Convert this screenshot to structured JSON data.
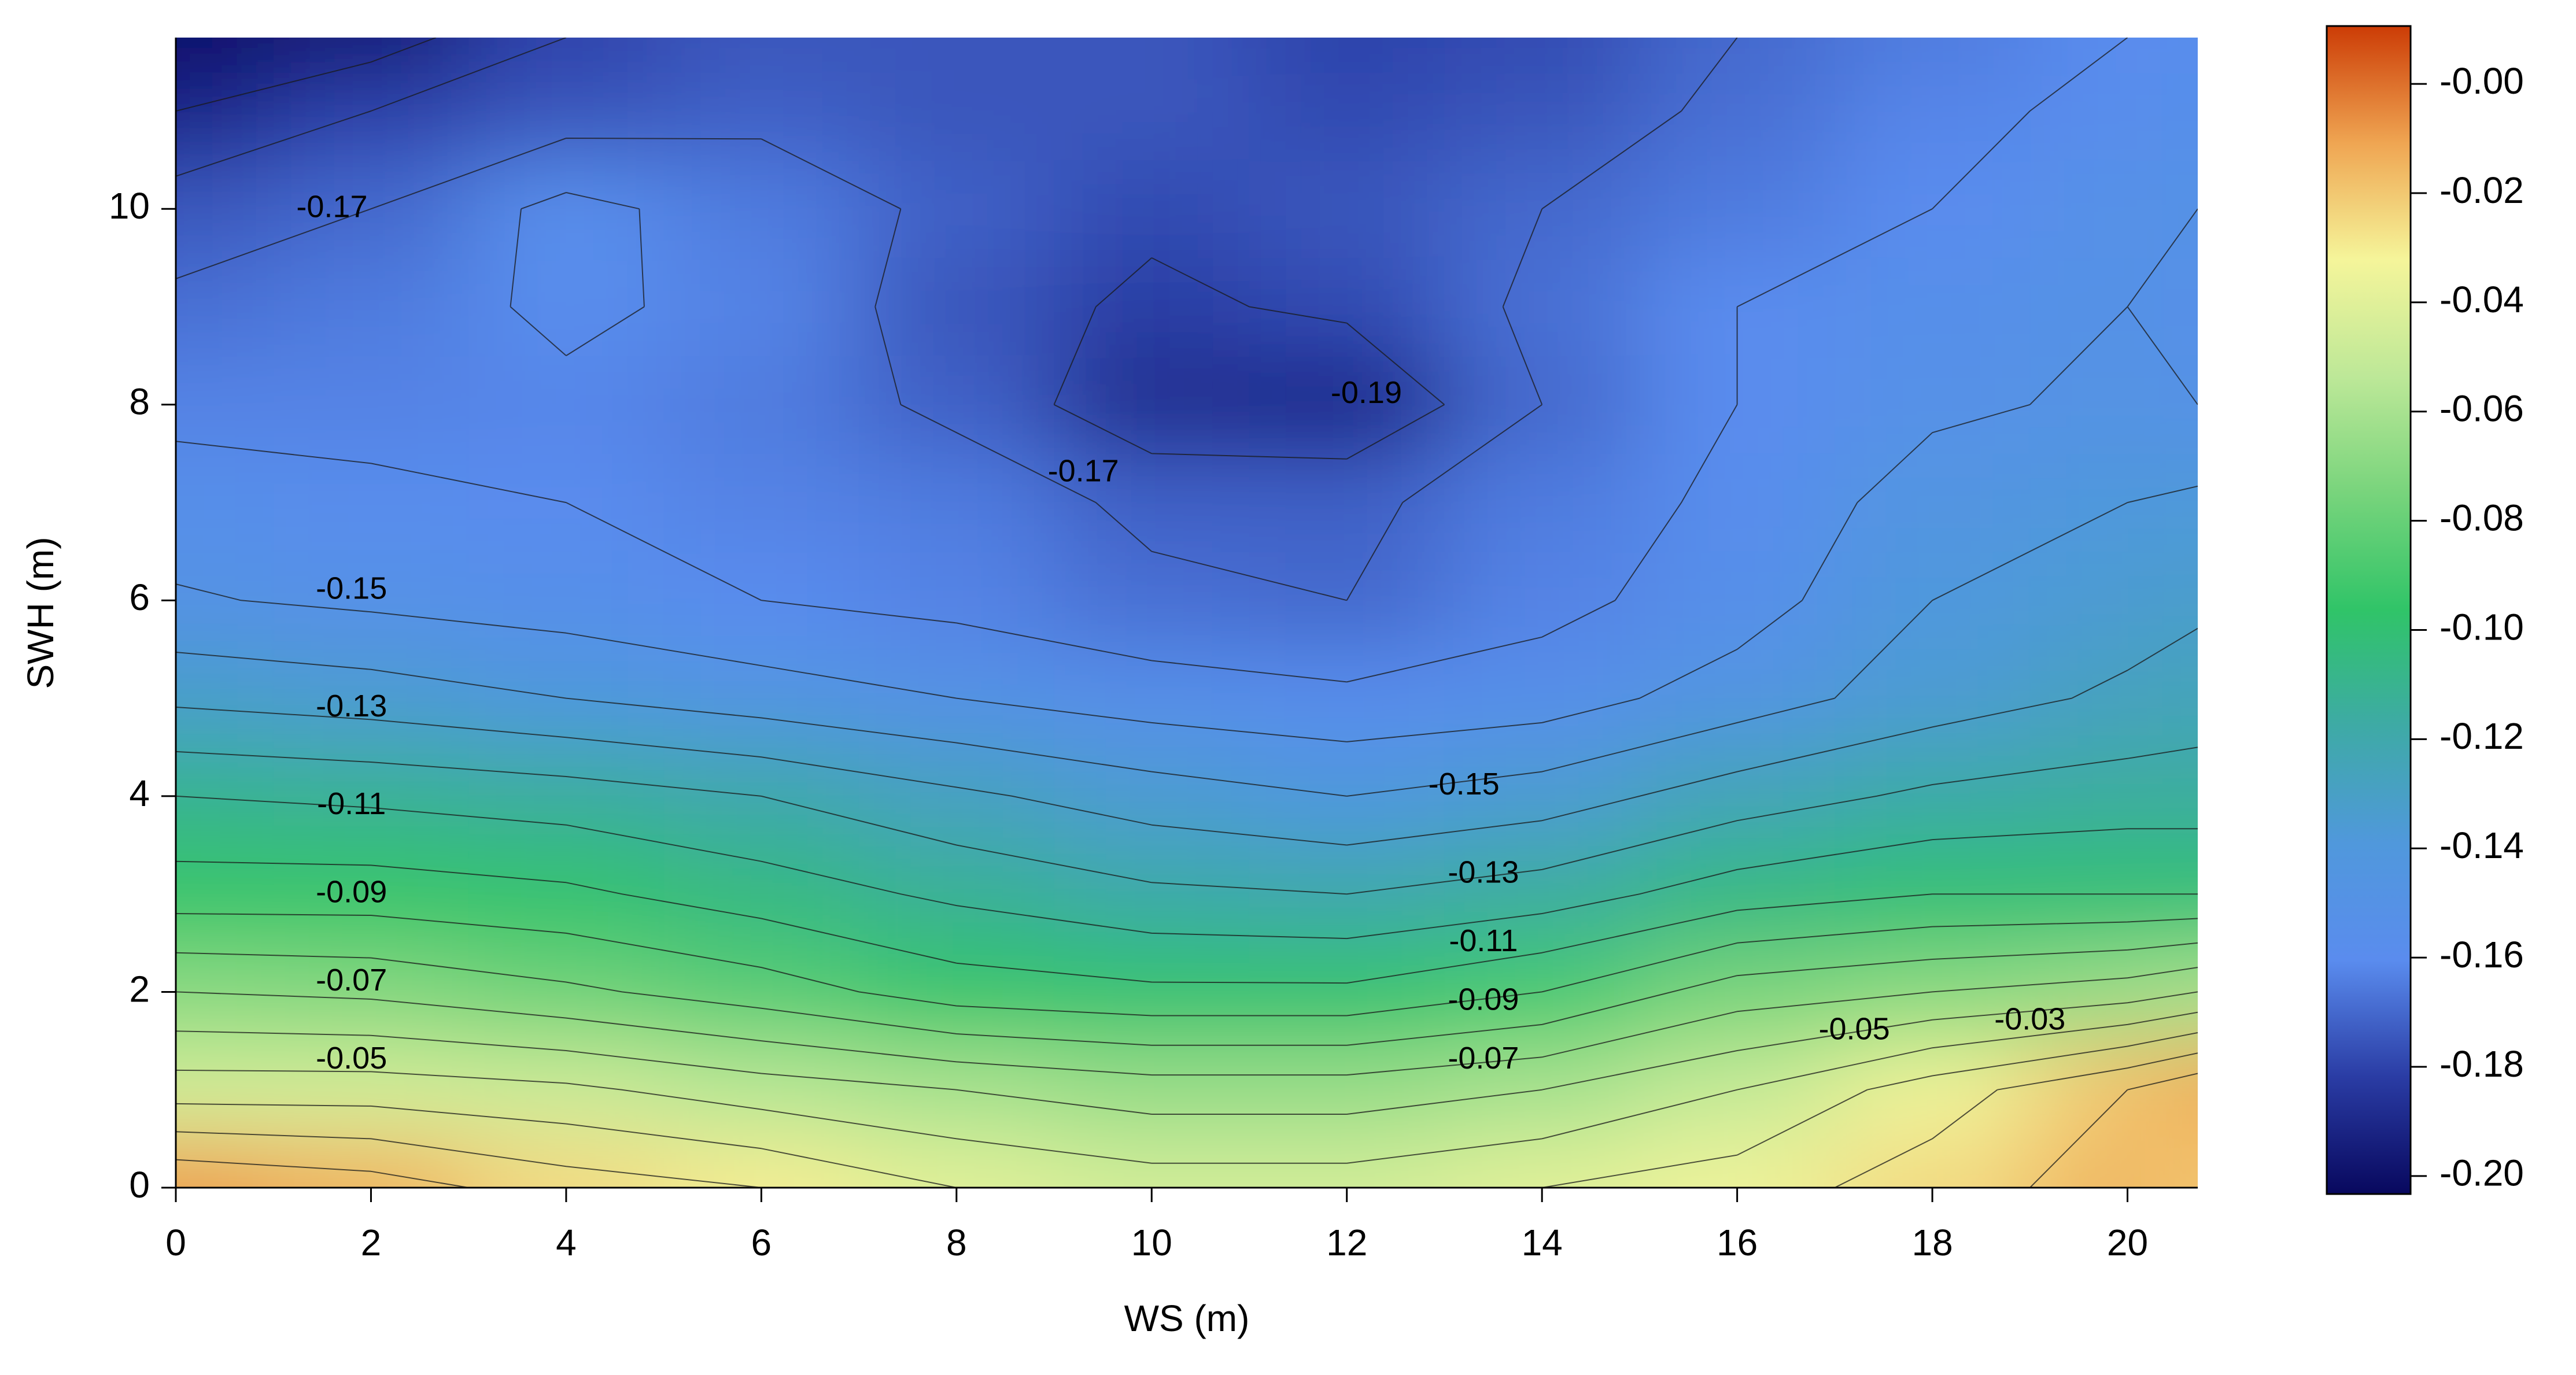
{
  "chart_data": {
    "type": "contour",
    "xlabel": "WS (m)",
    "ylabel": "SWH (m)",
    "x": [
      0,
      2,
      4,
      6,
      8,
      10,
      12,
      14,
      16,
      18,
      20,
      20.72
    ],
    "y": [
      0,
      1,
      2,
      3,
      4,
      5,
      6,
      7,
      8,
      9,
      10,
      11,
      11.75
    ],
    "z": [
      [
        -0.01,
        -0.015,
        -0.025,
        -0.03,
        -0.04,
        -0.045,
        -0.045,
        -0.04,
        -0.035,
        -0.025,
        -0.015,
        -0.02
      ],
      [
        -0.045,
        -0.045,
        -0.048,
        -0.055,
        -0.06,
        -0.065,
        -0.065,
        -0.06,
        -0.05,
        -0.035,
        -0.02,
        -0.012
      ],
      [
        -0.07,
        -0.072,
        -0.078,
        -0.085,
        -0.095,
        -0.098,
        -0.098,
        -0.09,
        -0.075,
        -0.07,
        -0.065,
        -0.06
      ],
      [
        -0.095,
        -0.095,
        -0.098,
        -0.105,
        -0.112,
        -0.118,
        -0.12,
        -0.115,
        -0.105,
        -0.1,
        -0.1,
        -0.1
      ],
      [
        -0.11,
        -0.112,
        -0.115,
        -0.12,
        -0.128,
        -0.135,
        -0.14,
        -0.135,
        -0.125,
        -0.118,
        -0.115,
        -0.115
      ],
      [
        -0.132,
        -0.135,
        -0.14,
        -0.145,
        -0.15,
        -0.155,
        -0.158,
        -0.155,
        -0.145,
        -0.135,
        -0.128,
        -0.125
      ],
      [
        -0.149,
        -0.152,
        -0.155,
        -0.16,
        -0.163,
        -0.168,
        -0.17,
        -0.163,
        -0.155,
        -0.14,
        -0.135,
        -0.132
      ],
      [
        -0.155,
        -0.158,
        -0.16,
        -0.163,
        -0.165,
        -0.172,
        -0.172,
        -0.165,
        -0.158,
        -0.145,
        -0.14,
        -0.138
      ],
      [
        -0.163,
        -0.163,
        -0.162,
        -0.165,
        -0.172,
        -0.188,
        -0.19,
        -0.17,
        -0.16,
        -0.152,
        -0.148,
        -0.15
      ],
      [
        -0.168,
        -0.165,
        -0.158,
        -0.163,
        -0.175,
        -0.182,
        -0.178,
        -0.168,
        -0.16,
        -0.155,
        -0.15,
        -0.155
      ],
      [
        -0.175,
        -0.17,
        -0.157,
        -0.165,
        -0.172,
        -0.178,
        -0.175,
        -0.17,
        -0.165,
        -0.16,
        -0.152,
        -0.15
      ],
      [
        -0.19,
        -0.18,
        -0.175,
        -0.172,
        -0.175,
        -0.175,
        -0.178,
        -0.175,
        -0.168,
        -0.162,
        -0.158,
        -0.155
      ],
      [
        -0.2,
        -0.195,
        -0.18,
        -0.175,
        -0.175,
        -0.175,
        -0.18,
        -0.178,
        -0.17,
        -0.165,
        -0.16,
        -0.158
      ]
    ],
    "xlim": [
      0,
      20.72
    ],
    "xticks": [
      0,
      2,
      4,
      6,
      8,
      10,
      12,
      14,
      16,
      18,
      20
    ],
    "ylim": [
      0,
      11.75
    ],
    "yticks": [
      0,
      2,
      4,
      6,
      8,
      10
    ],
    "zlim": [
      -0.2033,
      0.0106
    ],
    "zticks": [
      {
        "value": 0,
        "label": "-0.00"
      },
      -0.02,
      -0.04,
      -0.06,
      -0.08,
      {
        "value": -0.1,
        "label": "-0.10"
      },
      -0.12,
      -0.14,
      -0.16,
      -0.18,
      {
        "value": -0.2,
        "label": "-0.20"
      }
    ],
    "colormap": [
      "#08085e",
      "#2a3ca4",
      "#5a8cee",
      "#5098dc",
      "#3eaaa6",
      "#30c468",
      "#78d47c",
      "#bde898",
      "#f5f59a",
      "#efa552",
      "#cc3c06"
    ],
    "contour_levels": [
      -0.2,
      -0.19,
      -0.18,
      -0.17,
      -0.16,
      -0.15,
      -0.14,
      -0.13,
      -0.12,
      -0.11,
      -0.1,
      -0.09,
      -0.08,
      -0.07,
      -0.06,
      -0.05,
      -0.04,
      -0.03,
      -0.02,
      -0.01
    ],
    "contour_labels": [
      {
        "value": -0.17,
        "x": 1.6,
        "y": 10.0
      },
      {
        "value": -0.19,
        "x": 12.2,
        "y": 8.1
      },
      {
        "value": -0.17,
        "x": 9.3,
        "y": 7.3
      },
      {
        "value": -0.15,
        "x": 1.8,
        "y": 6.1
      },
      {
        "value": -0.13,
        "x": 1.8,
        "y": 4.9
      },
      {
        "value": -0.11,
        "x": 1.8,
        "y": 3.9
      },
      {
        "value": -0.09,
        "x": 1.8,
        "y": 3.0
      },
      {
        "value": -0.07,
        "x": 1.8,
        "y": 2.1
      },
      {
        "value": -0.05,
        "x": 1.8,
        "y": 1.3
      },
      {
        "value": -0.15,
        "x": 13.2,
        "y": 4.1
      },
      {
        "value": -0.13,
        "x": 13.4,
        "y": 3.2
      },
      {
        "value": -0.11,
        "x": 13.4,
        "y": 2.5
      },
      {
        "value": -0.09,
        "x": 13.4,
        "y": 1.9
      },
      {
        "value": -0.07,
        "x": 13.4,
        "y": 1.3
      },
      {
        "value": -0.05,
        "x": 17.2,
        "y": 1.6
      },
      {
        "value": -0.03,
        "x": 19.0,
        "y": 1.7
      }
    ]
  }
}
